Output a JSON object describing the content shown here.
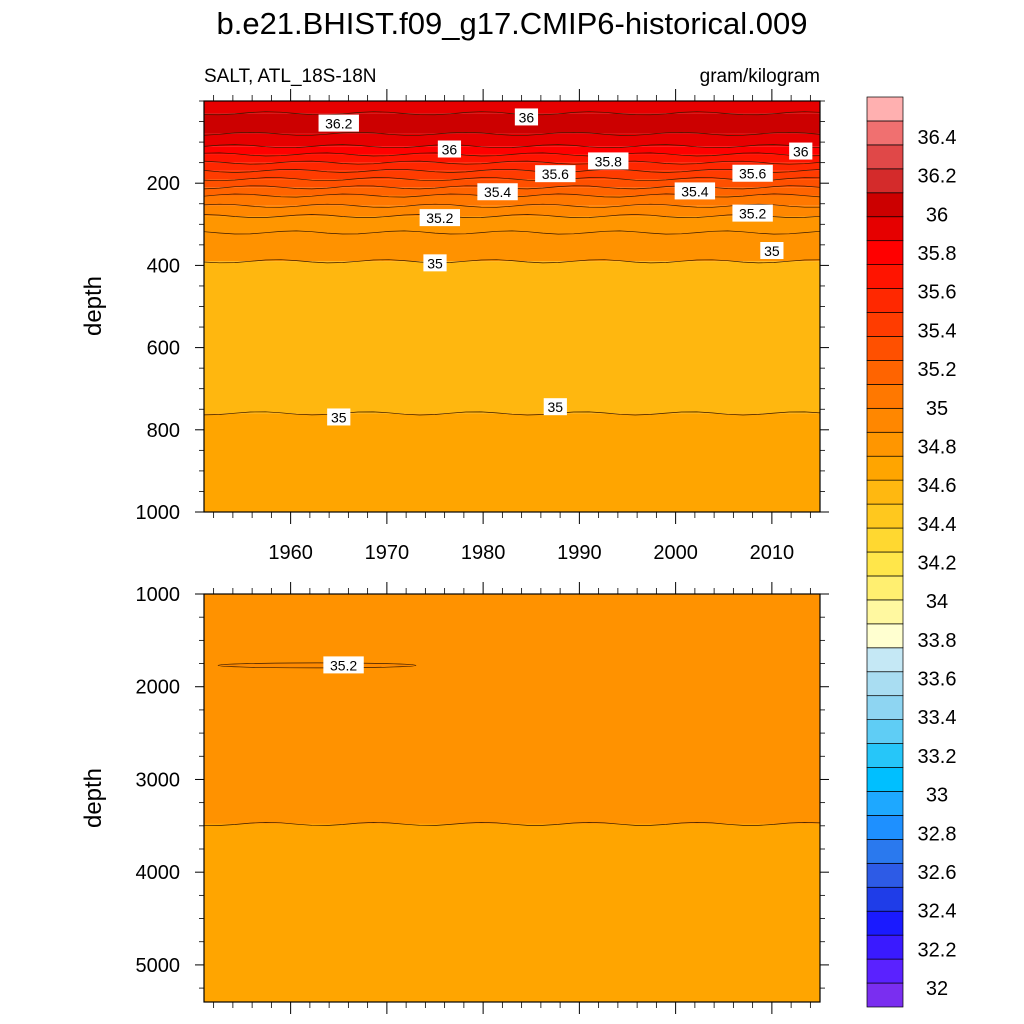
{
  "chart_data": {
    "type": "heatmap",
    "title": "b.e21.BHIST.f09_g17.CMIP6-historical.009",
    "left_label": "SALT, ATL_18S-18N",
    "right_label": "gram/kilogram",
    "ylabel": "depth",
    "xlabel": "",
    "xlim": [
      1951,
      2015
    ],
    "x_ticks": [
      1960,
      1970,
      1980,
      1990,
      2000,
      2010
    ],
    "x_tick_labels": [
      "1960",
      "1970",
      "1980",
      "1990",
      "2000",
      "2010"
    ],
    "panels": [
      {
        "name": "upper",
        "ylim": [
          0,
          1000
        ],
        "y_ticks": [
          200,
          400,
          600,
          800,
          1000
        ],
        "y_tick_labels": [
          "200",
          "400",
          "600",
          "800",
          "1000"
        ],
        "bands": [
          {
            "top": 0,
            "bottom": 30,
            "value": 36.1
          },
          {
            "top": 30,
            "bottom": 80,
            "value": 36.2
          },
          {
            "top": 80,
            "bottom": 110,
            "value": 36.1
          },
          {
            "top": 110,
            "bottom": 130,
            "value": 36.0
          },
          {
            "top": 130,
            "bottom": 150,
            "value": 35.9
          },
          {
            "top": 150,
            "bottom": 170,
            "value": 35.8
          },
          {
            "top": 170,
            "bottom": 190,
            "value": 35.7
          },
          {
            "top": 190,
            "bottom": 210,
            "value": 35.6
          },
          {
            "top": 210,
            "bottom": 230,
            "value": 35.5
          },
          {
            "top": 230,
            "bottom": 255,
            "value": 35.4
          },
          {
            "top": 255,
            "bottom": 280,
            "value": 35.3
          },
          {
            "top": 280,
            "bottom": 320,
            "value": 35.2
          },
          {
            "top": 320,
            "bottom": 390,
            "value": 35.1
          },
          {
            "top": 390,
            "bottom": 760,
            "value": 35.0
          },
          {
            "top": 760,
            "bottom": 1000,
            "value": 34.9
          }
        ],
        "contour_labels": [
          {
            "text": "36.2",
            "x": 1965,
            "y": 55
          },
          {
            "text": "36",
            "x": 1984.5,
            "y": 40
          },
          {
            "text": "36",
            "x": 1976.5,
            "y": 118
          },
          {
            "text": "36",
            "x": 2013,
            "y": 123
          },
          {
            "text": "35.8",
            "x": 1993,
            "y": 147
          },
          {
            "text": "35.6",
            "x": 1987.5,
            "y": 178
          },
          {
            "text": "35.6",
            "x": 2008,
            "y": 177
          },
          {
            "text": "35.4",
            "x": 1981.5,
            "y": 222
          },
          {
            "text": "35.4",
            "x": 2002,
            "y": 220
          },
          {
            "text": "35.2",
            "x": 1975.5,
            "y": 285
          },
          {
            "text": "35.2",
            "x": 2008,
            "y": 274
          },
          {
            "text": "35",
            "x": 1975,
            "y": 395
          },
          {
            "text": "35",
            "x": 2010,
            "y": 365
          },
          {
            "text": "35",
            "x": 1965,
            "y": 770
          },
          {
            "text": "35",
            "x": 1987.5,
            "y": 745
          }
        ]
      },
      {
        "name": "lower",
        "ylim": [
          1000,
          5400
        ],
        "y_ticks": [
          1000,
          2000,
          3000,
          4000,
          5000
        ],
        "y_tick_labels": [
          "1000",
          "2000",
          "3000",
          "4000",
          "5000"
        ],
        "bands": [
          {
            "top": 1000,
            "bottom": 3480,
            "value": 35.1
          },
          {
            "top": 3480,
            "bottom": 5400,
            "value": 34.9
          }
        ],
        "contour_labels": [
          {
            "text": "35.2",
            "x": 1965.5,
            "y": 1770
          }
        ]
      }
    ],
    "colorbar": {
      "labels": [
        "32",
        "32.2",
        "32.4",
        "32.6",
        "32.8",
        "33",
        "33.2",
        "33.4",
        "33.6",
        "33.8",
        "34",
        "34.2",
        "34.4",
        "34.6",
        "34.8",
        "35",
        "35.2",
        "35.4",
        "35.6",
        "35.8",
        "36",
        "36.2",
        "36.4"
      ],
      "colors_bottom_to_top": [
        "#7a2ef0",
        "#5a22ff",
        "#3a1aff",
        "#1a1aff",
        "#1f3de8",
        "#2d5be6",
        "#2a79ee",
        "#1e90ff",
        "#1ea8ff",
        "#00bfff",
        "#26c6f9",
        "#5fcdf5",
        "#8ed5f2",
        "#a9ddf2",
        "#c5e8f5",
        "#ffffd0",
        "#fff8a0",
        "#ffef70",
        "#ffe64a",
        "#ffd830",
        "#ffc81e",
        "#ffb810",
        "#ffa500",
        "#ff9600",
        "#ff8700",
        "#ff7800",
        "#ff6400",
        "#ff5000",
        "#ff3c00",
        "#ff2800",
        "#ff1400",
        "#ff0000",
        "#e60000",
        "#cc0000",
        "#d42b2b",
        "#e04848",
        "#f07070",
        "#ffb0b0"
      ]
    }
  }
}
